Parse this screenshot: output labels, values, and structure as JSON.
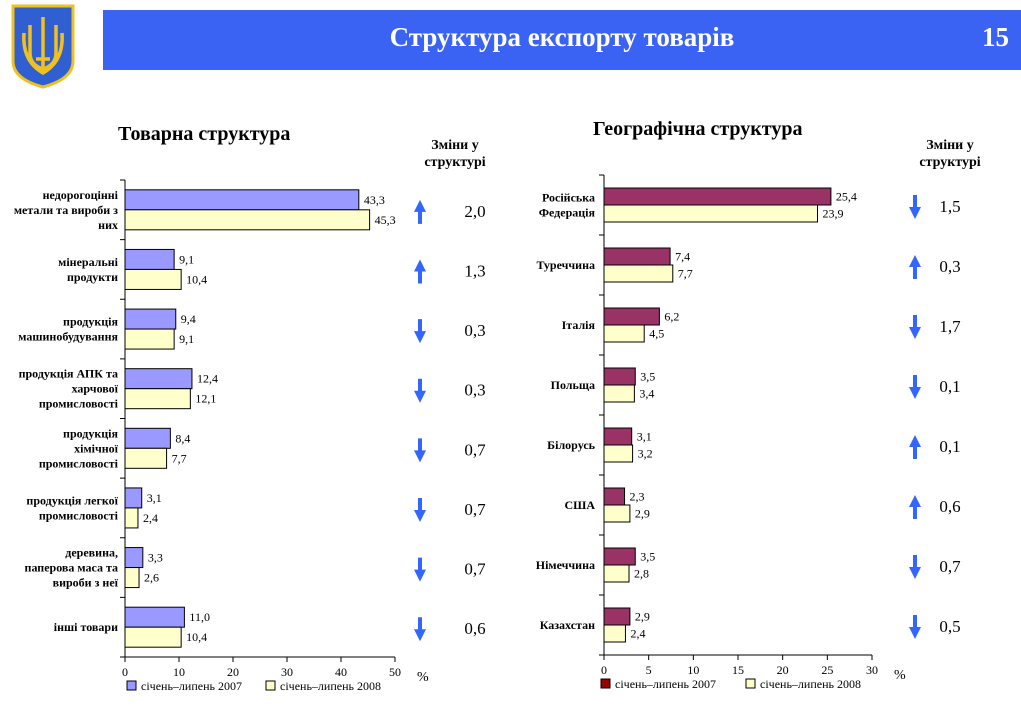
{
  "header": {
    "title": "Структура експорту товарів",
    "page_number": "15"
  },
  "colors": {
    "header": "#3b63f3",
    "left_2007": "#9999ff",
    "right_2007": "#993366",
    "y2008": "#ffffcc",
    "arrow": "#3366ff"
  },
  "chart_data": [
    {
      "type": "bar",
      "orientation": "horizontal",
      "title": "Товарна структура",
      "change_header": "Зміни у структурі",
      "categories": [
        "недорогоцінні метали та вироби з них",
        "мінеральні продукти",
        "продукція машинобудування",
        "продукція АПК та харчової промисловості",
        "продукція хімічної промисловості",
        "продукція легкої промисловості",
        "деревина, паперова маса та вироби з неї",
        "інші товари"
      ],
      "series": [
        {
          "name": "січень–липень 2007",
          "values": [
            43.3,
            9.1,
            9.4,
            12.4,
            8.4,
            3.1,
            3.3,
            11.0
          ],
          "labels": [
            "43,3",
            "9,1",
            "9,4",
            "12,4",
            "8,4",
            "3,1",
            "3,3",
            "11,0"
          ]
        },
        {
          "name": "січень–липень 2008",
          "values": [
            45.3,
            10.4,
            9.1,
            12.1,
            7.7,
            2.4,
            2.6,
            10.4
          ],
          "labels": [
            "45,3",
            "10,4",
            "9,1",
            "12,1",
            "7,7",
            "2,4",
            "2,6",
            "10,4"
          ]
        }
      ],
      "changes": [
        {
          "dir": "up",
          "value": "2,0"
        },
        {
          "dir": "up",
          "value": "1,3"
        },
        {
          "dir": "down",
          "value": "0,3"
        },
        {
          "dir": "down",
          "value": "0,3"
        },
        {
          "dir": "down",
          "value": "0,7"
        },
        {
          "dir": "down",
          "value": "0,7"
        },
        {
          "dir": "down",
          "value": "0,7"
        },
        {
          "dir": "down",
          "value": "0,6"
        }
      ],
      "xlim": [
        0,
        50
      ],
      "xticks": [
        "0",
        "10",
        "20",
        "30",
        "40",
        "50"
      ],
      "xlabel": "%",
      "legend": "bottom"
    },
    {
      "type": "bar",
      "orientation": "horizontal",
      "title": "Географічна структура",
      "change_header": "Зміни у структурі",
      "categories": [
        "Російська Федерація",
        "Туреччина",
        "Італія",
        "Польща",
        "Білорусь",
        "США",
        "Німеччина",
        "Казахстан"
      ],
      "series": [
        {
          "name": "січень–липень 2007",
          "values": [
            25.4,
            7.4,
            6.2,
            3.5,
            3.1,
            2.3,
            3.5,
            2.9
          ],
          "labels": [
            "25,4",
            "7,4",
            "6,2",
            "3,5",
            "3,1",
            "2,3",
            "3,5",
            "2,9"
          ]
        },
        {
          "name": "січень–липень 2008",
          "values": [
            23.9,
            7.7,
            4.5,
            3.4,
            3.2,
            2.9,
            2.8,
            2.4
          ],
          "labels": [
            "23,9",
            "7,7",
            "4,5",
            "3,4",
            "3,2",
            "2,9",
            "2,8",
            "2,4"
          ]
        }
      ],
      "changes": [
        {
          "dir": "down",
          "value": "1,5"
        },
        {
          "dir": "up",
          "value": "0,3"
        },
        {
          "dir": "down",
          "value": "1,7"
        },
        {
          "dir": "down",
          "value": "0,1"
        },
        {
          "dir": "up",
          "value": "0,1"
        },
        {
          "dir": "up",
          "value": "0,6"
        },
        {
          "dir": "down",
          "value": "0,7"
        },
        {
          "dir": "down",
          "value": "0,5"
        }
      ],
      "xlim": [
        0,
        30
      ],
      "xticks": [
        "0",
        "5",
        "10",
        "15",
        "20",
        "25",
        "30"
      ],
      "xlabel": "%",
      "legend": "bottom"
    }
  ]
}
